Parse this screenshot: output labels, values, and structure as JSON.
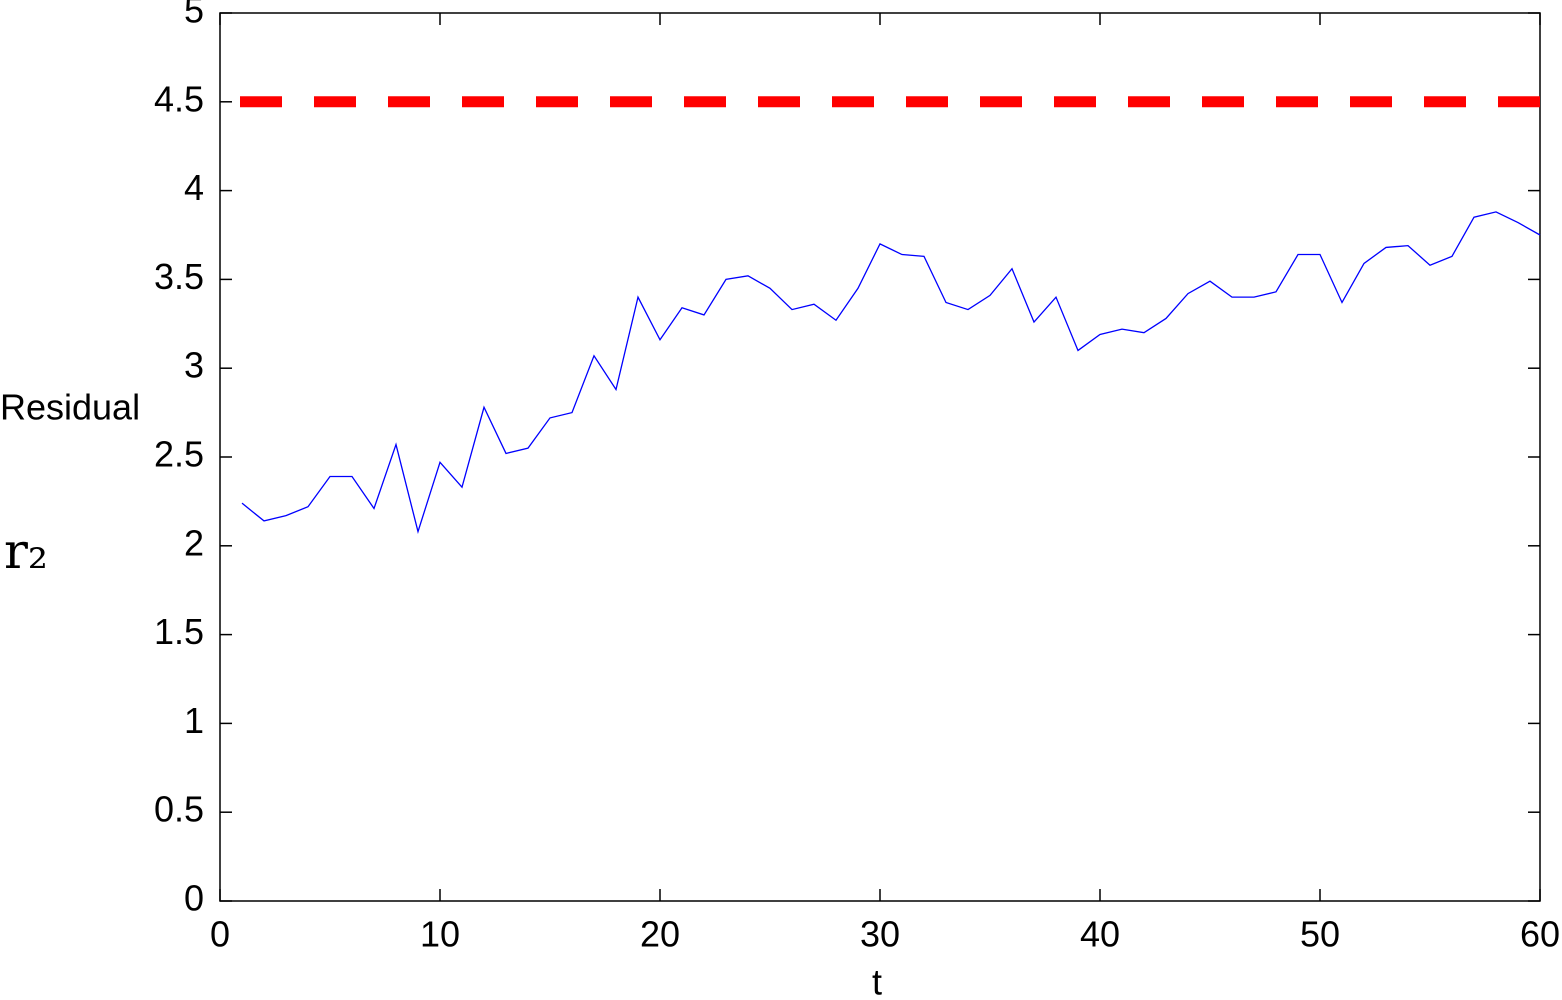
{
  "chart_data": {
    "type": "line",
    "xlabel": "t",
    "ylabel": "Residual",
    "x": [
      1,
      2,
      3,
      4,
      5,
      6,
      7,
      8,
      9,
      10,
      11,
      12,
      13,
      14,
      15,
      16,
      17,
      18,
      19,
      20,
      21,
      22,
      23,
      24,
      25,
      26,
      27,
      28,
      29,
      30,
      31,
      32,
      33,
      34,
      35,
      36,
      37,
      38,
      39,
      40,
      41,
      42,
      43,
      44,
      45,
      46,
      47,
      48,
      49,
      50,
      51,
      52,
      53,
      54,
      55,
      56,
      57,
      58,
      59,
      60
    ],
    "series": [
      {
        "name": "r₂",
        "color": "#0000ff",
        "values": [
          2.24,
          2.14,
          2.17,
          2.22,
          2.39,
          2.39,
          2.21,
          2.57,
          2.08,
          2.47,
          2.33,
          2.78,
          2.52,
          2.55,
          2.72,
          2.75,
          3.07,
          2.88,
          3.4,
          3.16,
          3.34,
          3.3,
          3.5,
          3.52,
          3.45,
          3.33,
          3.36,
          3.27,
          3.45,
          3.7,
          3.64,
          3.63,
          3.37,
          3.33,
          3.41,
          3.56,
          3.26,
          3.4,
          3.1,
          3.19,
          3.22,
          3.2,
          3.28,
          3.42,
          3.49,
          3.4,
          3.4,
          3.43,
          3.64,
          3.64,
          3.37,
          3.59,
          3.68,
          3.69,
          3.58,
          3.63,
          3.85,
          3.88,
          3.82,
          3.75
        ]
      }
    ],
    "threshold": {
      "value": 4.5,
      "color": "#ff0000"
    },
    "xlim": [
      0,
      60
    ],
    "xticks": [
      0,
      10,
      20,
      30,
      40,
      50,
      60
    ],
    "ylim": [
      0,
      5
    ],
    "yticks": [
      0,
      0.5,
      1,
      1.5,
      2,
      2.5,
      3,
      3.5,
      4,
      4.5,
      5
    ],
    "grid": false
  }
}
